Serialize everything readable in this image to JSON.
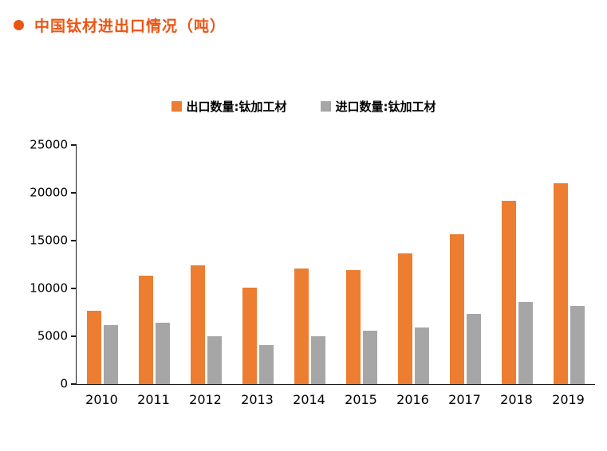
{
  "header": {
    "title": "中国钛材进出口情况（吨）",
    "accent_color": "#EA5514"
  },
  "chart_data": {
    "type": "bar",
    "title": "中国钛材进出口情况（吨）",
    "categories": [
      "2010",
      "2011",
      "2012",
      "2013",
      "2014",
      "2015",
      "2016",
      "2017",
      "2018",
      "2019"
    ],
    "series": [
      {
        "name": "出口数量:钛加工材",
        "color": "#ED7D31",
        "values": [
          7700,
          11300,
          12400,
          10100,
          12100,
          11900,
          13700,
          15700,
          19200,
          21000
        ]
      },
      {
        "name": "进口数量:钛加工材",
        "color": "#A6A6A6",
        "values": [
          6200,
          6400,
          5000,
          4100,
          5000,
          5600,
          5900,
          7300,
          8600,
          8200
        ]
      }
    ],
    "xlabel": "",
    "ylabel": "",
    "ylim": [
      0,
      25000
    ],
    "yticks": [
      0,
      5000,
      10000,
      15000,
      20000,
      25000
    ],
    "grid": false,
    "legend_position": "top-center",
    "axis_color": "#1a1a1a"
  }
}
